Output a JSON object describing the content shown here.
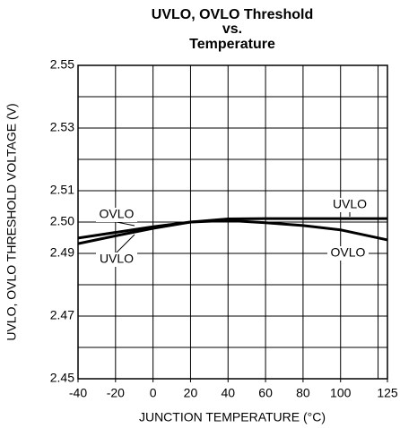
{
  "chart_data": {
    "type": "line",
    "title": [
      "UVLO, OVLO Threshold",
      "vs.",
      "Temperature"
    ],
    "x_label": "JUNCTION TEMPERATURE (°C)",
    "y_label": "UVLO, OVLO THRESHOLD VOLTAGE (V)",
    "x": [
      -40,
      -20,
      0,
      20,
      40,
      60,
      80,
      100,
      125
    ],
    "series": [
      {
        "name": "UVLO",
        "color": "#000000",
        "values": [
          2.4931,
          2.4956,
          2.498,
          2.5,
          2.501,
          2.5011,
          2.5011,
          2.5011,
          2.5011
        ]
      },
      {
        "name": "OVLO",
        "color": "#000000",
        "values": [
          2.4949,
          2.4967,
          2.4985,
          2.5,
          2.5005,
          2.4998,
          2.4989,
          2.4975,
          2.4943
        ]
      }
    ],
    "annotations": [
      "UVLO",
      "OVLO",
      "UVLO",
      "OVLO"
    ],
    "xlim": [
      -40,
      125
    ],
    "xticks": [
      -40,
      -20,
      0,
      20,
      40,
      60,
      80,
      100,
      125
    ],
    "xgrid": [
      -40,
      -20,
      0,
      20,
      40,
      60,
      80,
      100,
      120,
      125
    ],
    "ylim": [
      2.45,
      2.55
    ],
    "yticks": [
      2.45,
      2.47,
      2.49,
      {
        "value": 2.5,
        "label": "2.50"
      },
      2.51,
      2.53,
      2.55
    ],
    "ygrid": [
      2.46,
      2.48,
      2.52,
      2.54
    ],
    "grid": true
  }
}
